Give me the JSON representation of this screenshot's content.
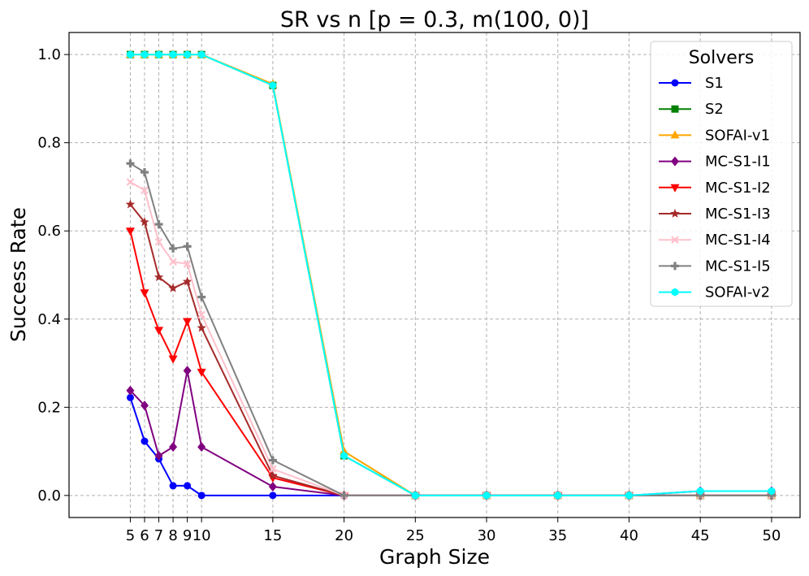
{
  "chart_data": {
    "type": "line",
    "title": "SR vs n [p = 0.3, m(100, 0)]",
    "xlabel": "Graph Size",
    "ylabel": "Success Rate",
    "x": [
      5,
      6,
      7,
      8,
      9,
      10,
      15,
      20,
      25,
      30,
      35,
      40,
      45,
      50
    ],
    "x_tick_labels": [
      "5",
      "6",
      "7",
      "8",
      "9",
      "10",
      "15",
      "20",
      "25",
      "30",
      "35",
      "40",
      "45",
      "50"
    ],
    "y_ticks": [
      0.0,
      0.2,
      0.4,
      0.6,
      0.8,
      1.0
    ],
    "y_tick_labels": [
      "0.0",
      "0.2",
      "0.4",
      "0.6",
      "0.8",
      "1.0"
    ],
    "xlim": [
      0.7,
      52.0
    ],
    "ylim": [
      -0.05,
      1.05
    ],
    "grid": true,
    "legend": {
      "title": "Solvers",
      "placement": "top-right"
    },
    "series": [
      {
        "name": "S1",
        "color": "#0000ff",
        "marker": "circle",
        "values": [
          0.222,
          0.123,
          0.083,
          0.022,
          0.022,
          0.0,
          0.0,
          0.0,
          0.0,
          0.0,
          0.0,
          0.0,
          0.0,
          0.0
        ]
      },
      {
        "name": "S2",
        "color": "#008000",
        "marker": "square",
        "values": [
          1.0,
          1.0,
          1.0,
          1.0,
          1.0,
          1.0,
          0.93,
          0.09,
          0.0,
          0.0,
          0.0,
          0.0,
          0.0,
          0.0
        ]
      },
      {
        "name": "SOFAI-v1",
        "color": "#ffa500",
        "marker": "triangle-up",
        "values": [
          1.0,
          1.0,
          1.0,
          1.0,
          1.0,
          1.0,
          0.933,
          0.1,
          0.0,
          0.0,
          0.0,
          0.0,
          0.0,
          0.0
        ]
      },
      {
        "name": "MC-S1-I1",
        "color": "#800080",
        "marker": "diamond",
        "values": [
          0.238,
          0.204,
          0.09,
          0.11,
          0.283,
          0.11,
          0.02,
          0.0,
          0.0,
          0.0,
          0.0,
          0.0,
          0.01,
          0.01
        ]
      },
      {
        "name": "MC-S1-I2",
        "color": "#ff0000",
        "marker": "triangle-down",
        "values": [
          0.6,
          0.46,
          0.375,
          0.31,
          0.395,
          0.28,
          0.04,
          0.0,
          0.0,
          0.0,
          0.0,
          0.0,
          0.0,
          0.0
        ]
      },
      {
        "name": "MC-S1-I3",
        "color": "#a52a2a",
        "marker": "star",
        "values": [
          0.66,
          0.62,
          0.495,
          0.47,
          0.485,
          0.38,
          0.045,
          0.0,
          0.0,
          0.0,
          0.0,
          0.0,
          0.0,
          0.0
        ]
      },
      {
        "name": "MC-S1-I4",
        "color": "#ffc0cb",
        "marker": "x",
        "values": [
          0.711,
          0.692,
          0.575,
          0.53,
          0.525,
          0.41,
          0.06,
          0.0,
          0.0,
          0.0,
          0.0,
          0.0,
          0.0,
          0.0
        ]
      },
      {
        "name": "MC-S1-I5",
        "color": "#808080",
        "marker": "plus",
        "values": [
          0.753,
          0.733,
          0.615,
          0.56,
          0.565,
          0.45,
          0.08,
          0.0,
          0.0,
          0.0,
          0.0,
          0.0,
          0.0,
          0.0
        ]
      },
      {
        "name": "SOFAI-v2",
        "color": "#00ffff",
        "marker": "hexagon",
        "values": [
          1.0,
          1.0,
          1.0,
          1.0,
          1.0,
          1.0,
          0.93,
          0.09,
          0.0,
          0.0,
          0.0,
          0.0,
          0.01,
          0.01
        ]
      }
    ]
  }
}
